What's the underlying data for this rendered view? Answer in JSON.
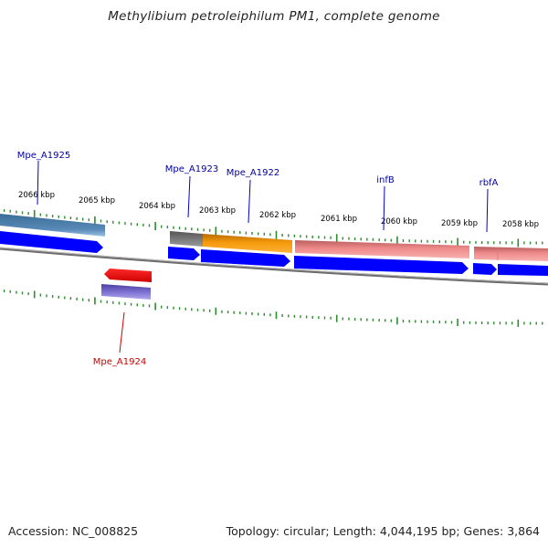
{
  "title": "Methylibium petroleiphilum PM1, complete genome",
  "footer": {
    "accession": "Accession: NC_008825",
    "summary": "Topology: circular; Length: 4,044,195 bp; Genes: 3,864"
  },
  "colors": {
    "backbone": "#7a7a7a",
    "tick": "#2e8b2e",
    "cds": "#0000ff",
    "forward_label": "#00009c",
    "reverse_label": "#cc0000",
    "gene_red": "#ff0000",
    "gene_purple": "#7b6fd0"
  },
  "scale": {
    "unit": "kbp",
    "labels": [
      "2066 kbp",
      "2065 kbp",
      "2064 kbp",
      "2063 kbp",
      "2062 kbp",
      "2061 kbp",
      "2060 kbp",
      "2059 kbp",
      "2058 kbp"
    ]
  },
  "genes": [
    {
      "label": "Mpe_A1925",
      "strand": "forward",
      "color": "#4f7fa8"
    },
    {
      "label": "Mpe_A1924",
      "strand": "reverse",
      "color": "#ff0000"
    },
    {
      "label": "Mpe_A1923",
      "strand": "forward",
      "color": "#6e6e6e"
    },
    {
      "label": "Mpe_A1922",
      "strand": "forward",
      "color": "#f59a0c"
    },
    {
      "label": "infB",
      "strand": "forward",
      "color": "#ef8a8a"
    },
    {
      "label": "rbfA",
      "strand": "forward",
      "color": "#ef8a8a"
    }
  ]
}
